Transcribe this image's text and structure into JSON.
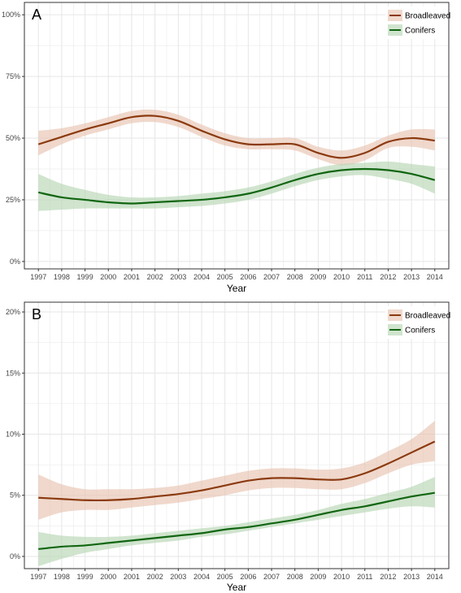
{
  "colors": {
    "broadleaved": "#8b3a0f",
    "broadleaved_band": "#e8c3b1",
    "conifers": "#116611",
    "conifers_band": "#b7d5b3",
    "grid": "#e6e6e6",
    "panel_border": "#333333"
  },
  "chart_data": [
    {
      "type": "line",
      "panel_label": "A",
      "xlabel": "Year",
      "ylabel": "",
      "x": [
        1997,
        1998,
        1999,
        2000,
        2001,
        2002,
        2003,
        2004,
        2005,
        2006,
        2007,
        2008,
        2009,
        2010,
        2011,
        2012,
        2013,
        2014
      ],
      "xlim": [
        1996.4,
        2014.6
      ],
      "ylim": [
        -3,
        105
      ],
      "y_ticks": [
        0,
        25,
        50,
        75,
        100
      ],
      "y_tick_labels": [
        "0%",
        "25%",
        "50%",
        "75%",
        "100%"
      ],
      "x_tick_labels": [
        "1997",
        "1998",
        "1999",
        "2000",
        "2001",
        "2002",
        "2003",
        "2004",
        "2005",
        "2006",
        "2007",
        "2008",
        "2009",
        "2010",
        "2011",
        "2012",
        "2013",
        "2014"
      ],
      "grid": true,
      "legend": {
        "position": "top-right",
        "entries": [
          "Broadleaved",
          "Conifers"
        ]
      },
      "series": [
        {
          "name": "Broadleaved",
          "values": [
            47.5,
            50.5,
            53.5,
            56,
            58.5,
            59,
            57,
            53,
            49.5,
            47.5,
            47.5,
            47.5,
            44,
            42,
            44,
            48.5,
            50,
            49
          ],
          "lower": [
            43,
            47.5,
            51,
            53.5,
            56,
            56.5,
            54.5,
            50.5,
            47,
            45.5,
            45.5,
            45,
            41.5,
            39,
            41,
            46,
            46.5,
            45
          ],
          "upper": [
            53,
            54,
            56,
            58.5,
            61,
            61.5,
            59.5,
            55.5,
            52,
            50,
            50,
            50,
            46.5,
            45,
            47,
            51,
            53.5,
            53.5
          ]
        },
        {
          "name": "Conifers",
          "values": [
            28,
            26,
            25,
            24,
            23.5,
            24,
            24.5,
            25,
            26,
            27.5,
            30,
            33,
            35.5,
            37,
            37.5,
            37,
            35.5,
            33
          ],
          "lower": [
            20.5,
            21,
            21.5,
            21.5,
            21.5,
            21.5,
            22,
            22.5,
            23.5,
            25,
            27.5,
            30.5,
            33,
            34.5,
            35,
            33.5,
            31.5,
            27.5
          ],
          "upper": [
            35.5,
            31.5,
            29,
            27,
            26,
            26,
            26.5,
            27.5,
            28.5,
            30,
            32.5,
            35.5,
            38,
            39.5,
            40,
            40.5,
            39.5,
            38.5
          ]
        }
      ]
    },
    {
      "type": "line",
      "panel_label": "B",
      "xlabel": "Year",
      "ylabel": "",
      "x": [
        1997,
        1998,
        1999,
        2000,
        2001,
        2002,
        2003,
        2004,
        2005,
        2006,
        2007,
        2008,
        2009,
        2010,
        2011,
        2012,
        2013,
        2014
      ],
      "xlim": [
        1996.4,
        2014.6
      ],
      "ylim": [
        -1,
        20.8
      ],
      "y_ticks": [
        0,
        5,
        10,
        15,
        20
      ],
      "y_tick_labels": [
        "0%",
        "5%",
        "10%",
        "15%",
        "20%"
      ],
      "x_tick_labels": [
        "1997",
        "1998",
        "1999",
        "2000",
        "2001",
        "2002",
        "2003",
        "2004",
        "2005",
        "2006",
        "2007",
        "2008",
        "2009",
        "2010",
        "2011",
        "2012",
        "2013",
        "2014"
      ],
      "grid": true,
      "legend": {
        "position": "top-right",
        "entries": [
          "Broadleaved",
          "Conifers"
        ]
      },
      "series": [
        {
          "name": "Broadleaved",
          "values": [
            4.8,
            4.7,
            4.6,
            4.6,
            4.7,
            4.9,
            5.1,
            5.4,
            5.8,
            6.2,
            6.4,
            6.4,
            6.3,
            6.3,
            6.8,
            7.6,
            8.5,
            9.4
          ],
          "lower": [
            3.0,
            3.6,
            3.8,
            3.8,
            4.0,
            4.2,
            4.4,
            4.7,
            5.0,
            5.4,
            5.6,
            5.6,
            5.5,
            5.5,
            6.0,
            6.8,
            7.5,
            7.8
          ],
          "upper": [
            6.7,
            5.9,
            5.5,
            5.5,
            5.5,
            5.6,
            5.8,
            6.2,
            6.6,
            7.0,
            7.2,
            7.2,
            7.1,
            7.2,
            7.7,
            8.6,
            9.6,
            11.1
          ]
        },
        {
          "name": "Conifers",
          "values": [
            0.6,
            0.8,
            0.9,
            1.1,
            1.3,
            1.5,
            1.7,
            1.9,
            2.2,
            2.4,
            2.7,
            3.0,
            3.4,
            3.8,
            4.1,
            4.5,
            4.9,
            5.2
          ],
          "lower": [
            -0.8,
            -0.2,
            0.3,
            0.6,
            0.9,
            1.1,
            1.3,
            1.6,
            1.8,
            2.1,
            2.4,
            2.7,
            3.0,
            3.3,
            3.6,
            3.9,
            4.1,
            4.0
          ],
          "upper": [
            2.0,
            1.7,
            1.6,
            1.6,
            1.7,
            1.9,
            2.1,
            2.3,
            2.5,
            2.8,
            3.1,
            3.4,
            3.8,
            4.3,
            4.7,
            5.2,
            5.7,
            6.5
          ]
        }
      ]
    }
  ]
}
